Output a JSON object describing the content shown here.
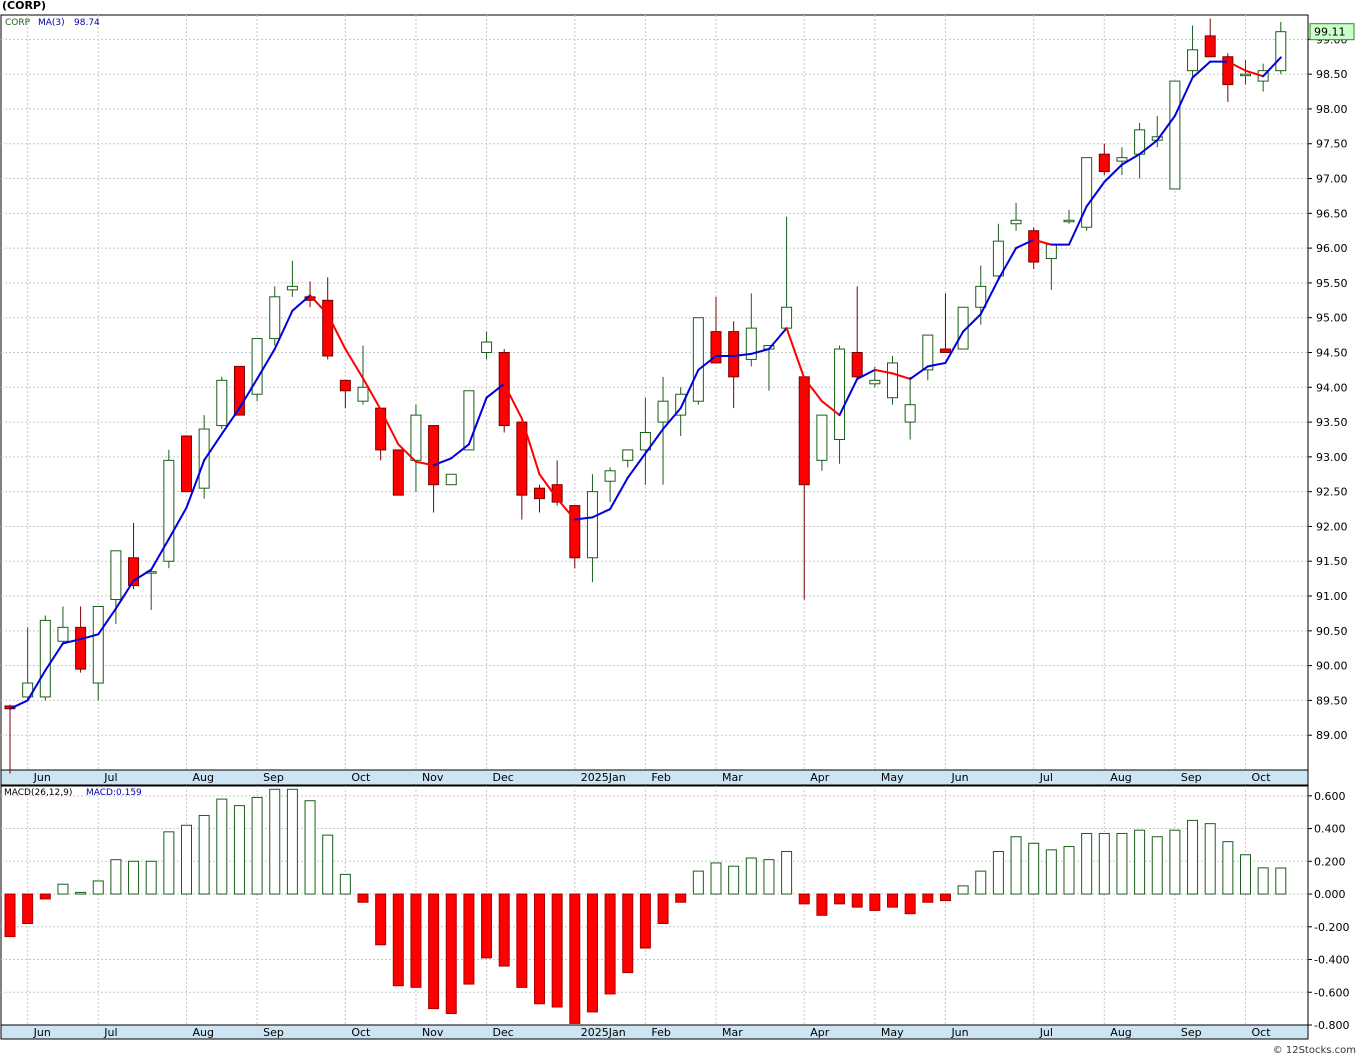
{
  "header": {
    "title": "(CORP)"
  },
  "legend_price": {
    "symbol": "CORP",
    "ma_label": "MA(3)",
    "ma_value": "98.74"
  },
  "legend_macd": {
    "label": "MACD(26,12,9)",
    "value_label": "MACD:0.159"
  },
  "last_price": "99.11",
  "credit": "© 12Stocks.com",
  "colors": {
    "up": "#ffffff",
    "up_stroke": "#1a5e1a",
    "down": "#ff0000",
    "down_stroke": "#7a0000",
    "ma_up": "#0000dd",
    "ma_down": "#ff0000",
    "macd_pos": "#1a5e1a",
    "macd_neg": "#ff0000",
    "grid": "#c8c8c8",
    "axis_band": "#cde4f2",
    "price_tag": "#ccffcc"
  },
  "chart_data": [
    {
      "type": "candlestick",
      "title": "(CORP)",
      "interval": "weekly",
      "y_ticks": [
        "99.00",
        "98.50",
        "98.00",
        "97.50",
        "97.00",
        "96.50",
        "96.00",
        "95.50",
        "95.00",
        "94.50",
        "94.00",
        "93.50",
        "93.00",
        "92.50",
        "92.00",
        "91.50",
        "91.00",
        "90.50",
        "90.00",
        "89.50",
        "89.00"
      ],
      "ylim": [
        88.5,
        99.35
      ],
      "x_ticks": [
        {
          "label": "Jun",
          "i": 1
        },
        {
          "label": "Jul",
          "i": 5
        },
        {
          "label": "Aug",
          "i": 10
        },
        {
          "label": "Sep",
          "i": 14
        },
        {
          "label": "Oct",
          "i": 19
        },
        {
          "label": "Nov",
          "i": 23
        },
        {
          "label": "Dec",
          "i": 27
        },
        {
          "label": "2025Jan",
          "i": 32
        },
        {
          "label": "Feb",
          "i": 36
        },
        {
          "label": "Mar",
          "i": 40
        },
        {
          "label": "Apr",
          "i": 45
        },
        {
          "label": "May",
          "i": 49
        },
        {
          "label": "Jun",
          "i": 53
        },
        {
          "label": "Jul",
          "i": 58
        },
        {
          "label": "Aug",
          "i": 62
        },
        {
          "label": "Sep",
          "i": 66
        },
        {
          "label": "Oct",
          "i": 70
        }
      ],
      "ohlc": [
        [
          89.42,
          89.44,
          88.45,
          89.38
        ],
        [
          89.55,
          90.55,
          89.5,
          89.75
        ],
        [
          89.55,
          90.72,
          89.5,
          90.65
        ],
        [
          90.35,
          90.85,
          90.3,
          90.55
        ],
        [
          90.55,
          90.85,
          89.9,
          89.95
        ],
        [
          89.75,
          90.85,
          89.5,
          90.85
        ],
        [
          90.95,
          91.65,
          90.6,
          91.65
        ],
        [
          91.55,
          92.05,
          91.1,
          91.15
        ],
        [
          91.35,
          91.38,
          90.8,
          91.35
        ],
        [
          91.5,
          93.1,
          91.4,
          92.95
        ],
        [
          93.3,
          93.3,
          92.5,
          92.5
        ],
        [
          92.55,
          93.6,
          92.4,
          93.4
        ],
        [
          93.45,
          94.15,
          93.4,
          94.1
        ],
        [
          94.3,
          94.3,
          93.6,
          93.6
        ],
        [
          93.9,
          94.7,
          93.8,
          94.7
        ],
        [
          94.7,
          95.45,
          94.6,
          95.3
        ],
        [
          95.4,
          95.82,
          95.3,
          95.45
        ],
        [
          95.3,
          95.52,
          95.15,
          95.25
        ],
        [
          95.25,
          95.58,
          94.4,
          94.45
        ],
        [
          94.1,
          94.1,
          93.7,
          93.95
        ],
        [
          93.8,
          94.6,
          93.75,
          94.0
        ],
        [
          93.7,
          93.7,
          92.95,
          93.1
        ],
        [
          93.1,
          93.1,
          92.45,
          92.45
        ],
        [
          92.95,
          93.75,
          92.5,
          93.6
        ],
        [
          93.45,
          93.45,
          92.2,
          92.6
        ],
        [
          92.6,
          92.75,
          92.6,
          92.75
        ],
        [
          93.1,
          93.95,
          93.15,
          93.95
        ],
        [
          94.5,
          94.8,
          94.4,
          94.65
        ],
        [
          94.5,
          94.55,
          93.35,
          93.45
        ],
        [
          93.5,
          93.5,
          92.1,
          92.45
        ],
        [
          92.55,
          92.6,
          92.2,
          92.4
        ],
        [
          92.6,
          92.95,
          92.3,
          92.35
        ],
        [
          92.3,
          92.3,
          91.4,
          91.55
        ],
        [
          91.55,
          92.75,
          91.2,
          92.5
        ],
        [
          92.65,
          92.85,
          92.35,
          92.8
        ],
        [
          92.95,
          93.0,
          92.85,
          93.1
        ],
        [
          93.1,
          93.85,
          92.6,
          93.35
        ],
        [
          93.5,
          94.15,
          92.6,
          93.8
        ],
        [
          93.6,
          94.0,
          93.3,
          93.9
        ],
        [
          93.8,
          95.0,
          93.75,
          95.0
        ],
        [
          94.8,
          95.3,
          94.35,
          94.35
        ],
        [
          94.8,
          94.95,
          93.7,
          94.15
        ],
        [
          94.4,
          95.35,
          94.3,
          94.85
        ],
        [
          94.55,
          94.6,
          93.95,
          94.6
        ],
        [
          94.85,
          96.45,
          94.85,
          95.15
        ],
        [
          94.15,
          94.15,
          90.95,
          92.6
        ],
        [
          92.95,
          93.6,
          92.8,
          93.6
        ],
        [
          93.25,
          94.6,
          92.9,
          94.55
        ],
        [
          94.5,
          95.45,
          94.1,
          94.15
        ],
        [
          94.05,
          94.3,
          94.0,
          94.1
        ],
        [
          93.85,
          94.45,
          93.75,
          94.35
        ],
        [
          93.5,
          94.15,
          93.25,
          93.75
        ],
        [
          94.25,
          94.75,
          94.1,
          94.75
        ],
        [
          94.55,
          95.35,
          94.5,
          94.5
        ],
        [
          94.55,
          95.15,
          94.55,
          95.15
        ],
        [
          95.15,
          95.75,
          94.9,
          95.45
        ],
        [
          95.6,
          96.35,
          95.55,
          96.1
        ],
        [
          96.35,
          96.65,
          96.25,
          96.4
        ],
        [
          96.25,
          96.3,
          95.7,
          95.8
        ],
        [
          95.85,
          96.05,
          95.4,
          96.05
        ],
        [
          96.4,
          96.55,
          96.35,
          96.4
        ],
        [
          96.3,
          97.3,
          96.25,
          97.3
        ],
        [
          97.35,
          97.5,
          97.05,
          97.1
        ],
        [
          97.25,
          97.45,
          97.05,
          97.3
        ],
        [
          97.35,
          97.8,
          97.0,
          97.7
        ],
        [
          97.55,
          97.9,
          97.45,
          97.6
        ],
        [
          96.85,
          98.4,
          96.85,
          98.4
        ],
        [
          98.55,
          99.2,
          98.45,
          98.85
        ],
        [
          99.05,
          99.3,
          98.75,
          98.75
        ],
        [
          98.75,
          98.8,
          98.1,
          98.35
        ],
        [
          98.5,
          98.7,
          98.35,
          98.5
        ],
        [
          98.4,
          98.65,
          98.25,
          98.55
        ],
        [
          98.55,
          99.25,
          98.5,
          99.11
        ]
      ],
      "ma3": [
        89.38,
        89.5,
        89.93,
        90.32,
        90.38,
        90.45,
        90.82,
        91.22,
        91.38,
        91.82,
        92.27,
        92.95,
        93.33,
        93.7,
        94.12,
        94.55,
        95.1,
        95.32,
        95.05,
        94.55,
        94.13,
        93.68,
        93.18,
        92.93,
        92.88,
        92.98,
        93.18,
        93.85,
        94.05,
        93.55,
        92.75,
        92.4,
        92.1,
        92.13,
        92.25,
        92.7,
        93.05,
        93.4,
        93.7,
        94.25,
        94.45,
        94.45,
        94.48,
        94.55,
        94.85,
        94.13,
        93.8,
        93.6,
        94.12,
        94.25,
        94.2,
        94.12,
        94.3,
        94.35,
        94.8,
        95.05,
        95.55,
        96.0,
        96.12,
        96.05,
        96.05,
        96.6,
        96.95,
        97.2,
        97.35,
        97.55,
        97.9,
        98.45,
        98.68,
        98.68,
        98.55,
        98.47,
        98.74
      ]
    },
    {
      "type": "bar",
      "title": "MACD(26,12,9)",
      "y_ticks": [
        "0.600",
        "0.400",
        "0.200",
        "0.000",
        "-0.200",
        "-0.400",
        "-0.600",
        "-0.800"
      ],
      "ylim": [
        -0.8,
        0.66
      ],
      "values": [
        -0.26,
        -0.18,
        -0.03,
        0.06,
        0.01,
        0.08,
        0.21,
        0.2,
        0.2,
        0.38,
        0.42,
        0.48,
        0.58,
        0.54,
        0.59,
        0.64,
        0.64,
        0.57,
        0.36,
        0.12,
        -0.05,
        -0.31,
        -0.56,
        -0.57,
        -0.7,
        -0.73,
        -0.55,
        -0.39,
        -0.44,
        -0.57,
        -0.67,
        -0.69,
        -0.79,
        -0.72,
        -0.61,
        -0.48,
        -0.33,
        -0.18,
        -0.05,
        0.14,
        0.19,
        0.17,
        0.22,
        0.21,
        0.26,
        -0.06,
        -0.13,
        -0.06,
        -0.08,
        -0.1,
        -0.08,
        -0.12,
        -0.05,
        -0.04,
        0.05,
        0.14,
        0.26,
        0.35,
        0.31,
        0.27,
        0.29,
        0.37,
        0.37,
        0.37,
        0.39,
        0.35,
        0.39,
        0.45,
        0.43,
        0.32,
        0.24,
        0.16,
        0.159
      ]
    }
  ]
}
